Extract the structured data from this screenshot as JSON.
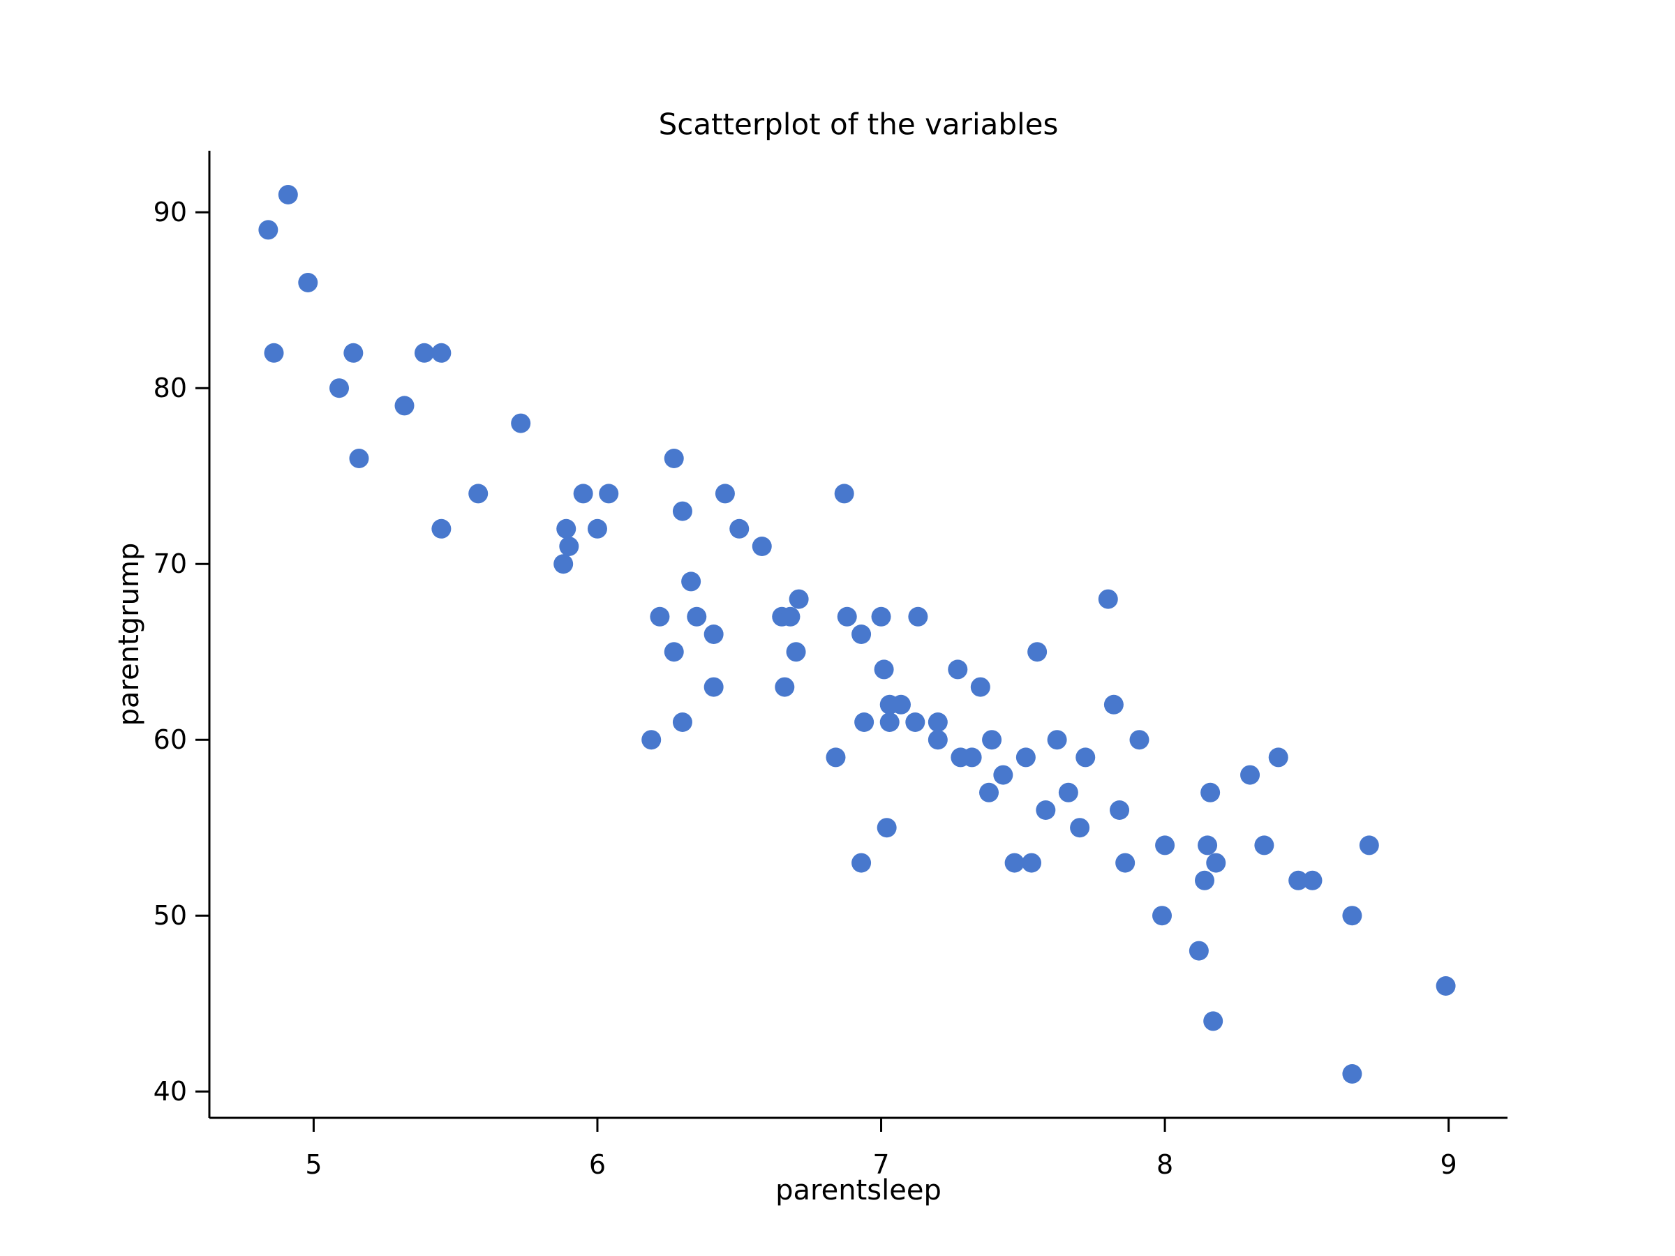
{
  "figure": {
    "background": "#ffffff"
  },
  "chart_data": {
    "type": "scatter",
    "title": "Scatterplot of the variables",
    "xlabel": "parentsleep",
    "ylabel": "parentgrump",
    "xlim": [
      4.6325,
      9.2075
    ],
    "ylim": [
      38.5,
      93.5
    ],
    "xticks": [
      5,
      6,
      7,
      8,
      9
    ],
    "yticks": [
      40,
      50,
      60,
      70,
      80,
      90
    ],
    "grid": false,
    "legend": null,
    "marker_color": "#4878cd",
    "marker_radius": 14,
    "axis_color": "#000000",
    "points": [
      [
        4.84,
        89
      ],
      [
        4.91,
        91
      ],
      [
        4.98,
        86
      ],
      [
        4.86,
        82
      ],
      [
        5.09,
        80
      ],
      [
        5.14,
        82
      ],
      [
        5.16,
        76
      ],
      [
        5.32,
        79
      ],
      [
        5.39,
        82
      ],
      [
        5.45,
        82
      ],
      [
        5.45,
        72
      ],
      [
        5.58,
        74
      ],
      [
        5.73,
        78
      ],
      [
        5.88,
        70
      ],
      [
        5.89,
        72
      ],
      [
        5.9,
        71
      ],
      [
        5.95,
        74
      ],
      [
        6.0,
        72
      ],
      [
        6.04,
        74
      ],
      [
        6.19,
        60
      ],
      [
        6.22,
        67
      ],
      [
        6.27,
        65
      ],
      [
        6.27,
        76
      ],
      [
        6.3,
        61
      ],
      [
        6.3,
        73
      ],
      [
        6.33,
        69
      ],
      [
        6.35,
        67
      ],
      [
        6.41,
        63
      ],
      [
        6.41,
        66
      ],
      [
        6.45,
        74
      ],
      [
        6.5,
        72
      ],
      [
        6.58,
        71
      ],
      [
        6.65,
        67
      ],
      [
        6.66,
        63
      ],
      [
        6.68,
        67
      ],
      [
        6.7,
        65
      ],
      [
        6.71,
        68
      ],
      [
        6.84,
        59
      ],
      [
        6.87,
        74
      ],
      [
        6.88,
        67
      ],
      [
        6.93,
        53
      ],
      [
        6.93,
        66
      ],
      [
        6.94,
        61
      ],
      [
        7.0,
        67
      ],
      [
        7.01,
        64
      ],
      [
        7.02,
        55
      ],
      [
        7.03,
        61
      ],
      [
        7.03,
        62
      ],
      [
        7.07,
        62
      ],
      [
        7.12,
        61
      ],
      [
        7.13,
        67
      ],
      [
        7.2,
        60
      ],
      [
        7.2,
        61
      ],
      [
        7.27,
        64
      ],
      [
        7.28,
        59
      ],
      [
        7.32,
        59
      ],
      [
        7.35,
        63
      ],
      [
        7.38,
        57
      ],
      [
        7.39,
        60
      ],
      [
        7.43,
        58
      ],
      [
        7.47,
        53
      ],
      [
        7.51,
        59
      ],
      [
        7.53,
        53
      ],
      [
        7.55,
        65
      ],
      [
        7.58,
        56
      ],
      [
        7.62,
        60
      ],
      [
        7.66,
        57
      ],
      [
        7.7,
        55
      ],
      [
        7.72,
        59
      ],
      [
        7.8,
        68
      ],
      [
        7.82,
        62
      ],
      [
        7.84,
        56
      ],
      [
        7.86,
        53
      ],
      [
        7.91,
        60
      ],
      [
        8.0,
        54
      ],
      [
        7.99,
        50
      ],
      [
        8.12,
        48
      ],
      [
        8.14,
        52
      ],
      [
        8.15,
        54
      ],
      [
        8.16,
        57
      ],
      [
        8.17,
        44
      ],
      [
        8.18,
        53
      ],
      [
        8.3,
        58
      ],
      [
        8.35,
        54
      ],
      [
        8.4,
        59
      ],
      [
        8.47,
        52
      ],
      [
        8.52,
        52
      ],
      [
        8.66,
        41
      ],
      [
        8.66,
        50
      ],
      [
        8.72,
        54
      ],
      [
        8.99,
        46
      ]
    ]
  }
}
